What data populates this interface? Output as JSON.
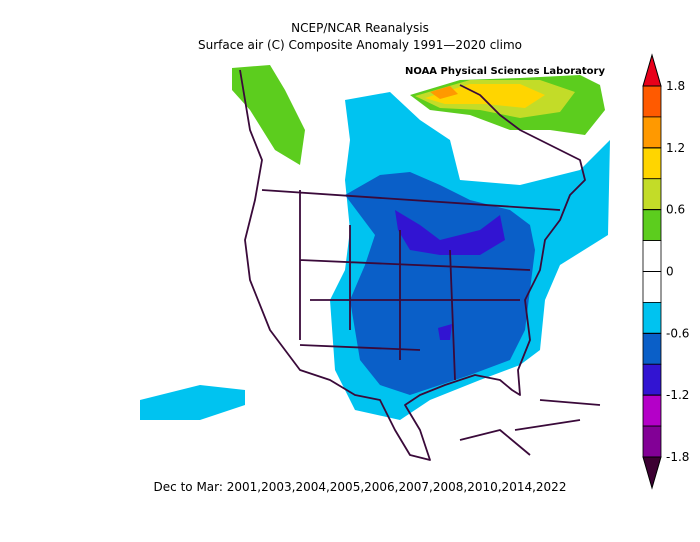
{
  "title": "NCEP/NCAR Reanalysis",
  "subtitle": "Surface air (C) Composite Anomaly 1991—2020 climo",
  "credit": "NOAA Physical Sciences Laboratory",
  "footer": "Dec to Mar: 2001,2003,2004,2005,2006,2007,2008,2010,2014,2022",
  "colorbar": {
    "ticks": [
      1.8,
      1.2,
      0.6,
      0,
      -0.6,
      -1.2,
      -1.8
    ],
    "colors": [
      "#e8001a",
      "#ff5a00",
      "#ff9900",
      "#ffd500",
      "#c3dc28",
      "#5ccd1e",
      "#ffffff",
      "#ffffff",
      "#00c3f0",
      "#0a5fc8",
      "#3214d2",
      "#b400c8",
      "#820096",
      "#3c0032"
    ]
  }
}
